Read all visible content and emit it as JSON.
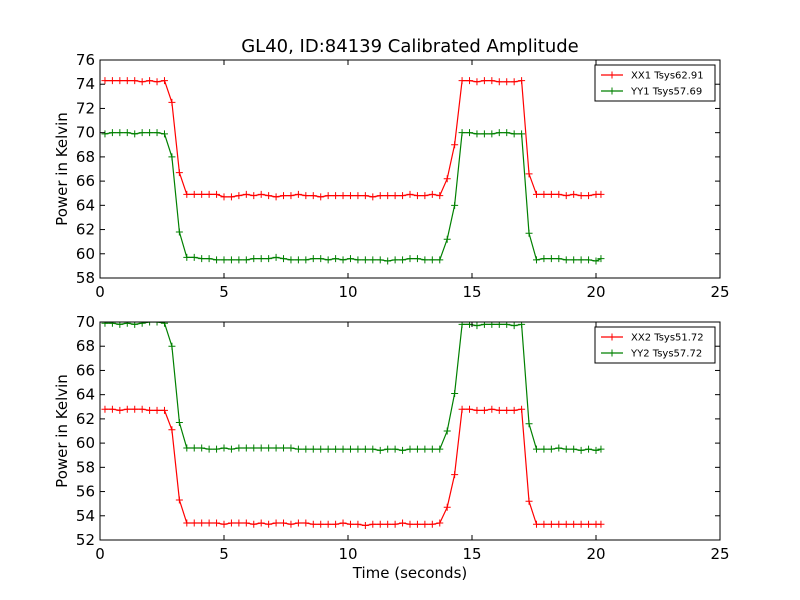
{
  "chart_data": [
    {
      "type": "line",
      "title": "GL40, ID:84139 Calibrated Amplitude",
      "xlabel": "",
      "ylabel": "Power in Kelvin",
      "xlim": [
        0,
        25
      ],
      "ylim": [
        58,
        76
      ],
      "xticks": [
        0,
        5,
        10,
        15,
        20,
        25
      ],
      "yticks": [
        58,
        60,
        62,
        64,
        66,
        68,
        70,
        72,
        74,
        76
      ],
      "legend_position": "top-right",
      "series": [
        {
          "name": "XX1 Tsys62.91",
          "color": "#ff0000",
          "x": [
            0.2,
            0.5,
            0.8,
            1.1,
            1.4,
            1.7,
            2.0,
            2.3,
            2.6,
            2.9,
            3.2,
            3.5,
            3.8,
            4.1,
            4.4,
            4.7,
            5.0,
            5.3,
            5.6,
            5.9,
            6.2,
            6.5,
            6.8,
            7.1,
            7.4,
            7.7,
            8.0,
            8.3,
            8.6,
            8.9,
            9.2,
            9.5,
            9.8,
            10.1,
            10.4,
            10.7,
            11.0,
            11.3,
            11.6,
            11.9,
            12.2,
            12.5,
            12.8,
            13.1,
            13.4,
            13.7,
            14.0,
            14.3,
            14.6,
            14.9,
            15.2,
            15.5,
            15.8,
            16.1,
            16.4,
            16.7,
            17.0,
            17.3,
            17.6,
            17.9,
            18.2,
            18.5,
            18.8,
            19.1,
            19.4,
            19.7,
            20.0,
            20.2
          ],
          "y": [
            74.3,
            74.3,
            74.3,
            74.3,
            74.3,
            74.2,
            74.3,
            74.2,
            74.3,
            72.5,
            66.7,
            64.9,
            64.9,
            64.9,
            64.9,
            64.9,
            64.7,
            64.7,
            64.8,
            64.9,
            64.8,
            64.9,
            64.8,
            64.7,
            64.8,
            64.8,
            64.9,
            64.8,
            64.8,
            64.7,
            64.8,
            64.8,
            64.8,
            64.8,
            64.8,
            64.8,
            64.7,
            64.8,
            64.8,
            64.8,
            64.8,
            64.9,
            64.8,
            64.8,
            64.9,
            64.8,
            66.2,
            69.0,
            74.3,
            74.3,
            74.2,
            74.3,
            74.3,
            74.2,
            74.2,
            74.2,
            74.3,
            66.6,
            64.9,
            64.9,
            64.9,
            64.9,
            64.8,
            64.9,
            64.8,
            64.8,
            64.9,
            64.9
          ]
        },
        {
          "name": "YY1 Tsys57.69",
          "color": "#008000",
          "x": [
            0.2,
            0.5,
            0.8,
            1.1,
            1.4,
            1.7,
            2.0,
            2.3,
            2.6,
            2.9,
            3.2,
            3.5,
            3.8,
            4.1,
            4.4,
            4.7,
            5.0,
            5.3,
            5.6,
            5.9,
            6.2,
            6.5,
            6.8,
            7.1,
            7.4,
            7.7,
            8.0,
            8.3,
            8.6,
            8.9,
            9.2,
            9.5,
            9.8,
            10.1,
            10.4,
            10.7,
            11.0,
            11.3,
            11.6,
            11.9,
            12.2,
            12.5,
            12.8,
            13.1,
            13.4,
            13.7,
            14.0,
            14.3,
            14.6,
            14.9,
            15.2,
            15.5,
            15.8,
            16.1,
            16.4,
            16.7,
            17.0,
            17.3,
            17.6,
            17.9,
            18.2,
            18.5,
            18.8,
            19.1,
            19.4,
            19.7,
            20.0,
            20.2
          ],
          "y": [
            69.9,
            70.0,
            70.0,
            70.0,
            69.9,
            70.0,
            70.0,
            70.0,
            69.9,
            68.0,
            61.8,
            59.7,
            59.7,
            59.6,
            59.6,
            59.5,
            59.5,
            59.5,
            59.5,
            59.5,
            59.6,
            59.6,
            59.6,
            59.7,
            59.6,
            59.5,
            59.5,
            59.5,
            59.6,
            59.6,
            59.5,
            59.6,
            59.5,
            59.6,
            59.5,
            59.5,
            59.5,
            59.5,
            59.4,
            59.5,
            59.5,
            59.6,
            59.6,
            59.5,
            59.5,
            59.5,
            61.2,
            64.0,
            70.0,
            70.0,
            69.9,
            69.9,
            69.9,
            70.0,
            70.0,
            69.9,
            69.9,
            61.7,
            59.5,
            59.6,
            59.6,
            59.6,
            59.5,
            59.5,
            59.5,
            59.5,
            59.4,
            59.6
          ]
        }
      ]
    },
    {
      "type": "line",
      "title": "",
      "xlabel": "Time (seconds)",
      "ylabel": "Power in Kelvin",
      "xlim": [
        0,
        25
      ],
      "ylim": [
        52,
        70
      ],
      "xticks": [
        0,
        5,
        10,
        15,
        20,
        25
      ],
      "yticks": [
        52,
        54,
        56,
        58,
        60,
        62,
        64,
        66,
        68,
        70
      ],
      "legend_position": "top-right",
      "series": [
        {
          "name": "XX2 Tsys51.72",
          "color": "#ff0000",
          "x": [
            0.2,
            0.5,
            0.8,
            1.1,
            1.4,
            1.7,
            2.0,
            2.3,
            2.6,
            2.9,
            3.2,
            3.5,
            3.8,
            4.1,
            4.4,
            4.7,
            5.0,
            5.3,
            5.6,
            5.9,
            6.2,
            6.5,
            6.8,
            7.1,
            7.4,
            7.7,
            8.0,
            8.3,
            8.6,
            8.9,
            9.2,
            9.5,
            9.8,
            10.1,
            10.4,
            10.7,
            11.0,
            11.3,
            11.6,
            11.9,
            12.2,
            12.5,
            12.8,
            13.1,
            13.4,
            13.7,
            14.0,
            14.3,
            14.6,
            14.9,
            15.2,
            15.5,
            15.8,
            16.1,
            16.4,
            16.7,
            17.0,
            17.3,
            17.6,
            17.9,
            18.2,
            18.5,
            18.8,
            19.1,
            19.4,
            19.7,
            20.0,
            20.2
          ],
          "y": [
            62.8,
            62.8,
            62.7,
            62.8,
            62.8,
            62.8,
            62.7,
            62.7,
            62.7,
            61.1,
            55.3,
            53.4,
            53.4,
            53.4,
            53.4,
            53.4,
            53.3,
            53.4,
            53.4,
            53.4,
            53.3,
            53.4,
            53.3,
            53.4,
            53.4,
            53.3,
            53.4,
            53.4,
            53.3,
            53.3,
            53.3,
            53.3,
            53.4,
            53.3,
            53.3,
            53.2,
            53.3,
            53.3,
            53.3,
            53.3,
            53.4,
            53.3,
            53.3,
            53.3,
            53.3,
            53.4,
            54.7,
            57.4,
            62.8,
            62.8,
            62.7,
            62.7,
            62.8,
            62.7,
            62.7,
            62.7,
            62.8,
            55.2,
            53.3,
            53.3,
            53.3,
            53.3,
            53.3,
            53.3,
            53.3,
            53.3,
            53.3,
            53.3
          ]
        },
        {
          "name": "YY2 Tsys57.72",
          "color": "#008000",
          "x": [
            0.2,
            0.5,
            0.8,
            1.1,
            1.4,
            1.7,
            2.0,
            2.3,
            2.6,
            2.9,
            3.2,
            3.5,
            3.8,
            4.1,
            4.4,
            4.7,
            5.0,
            5.3,
            5.6,
            5.9,
            6.2,
            6.5,
            6.8,
            7.1,
            7.4,
            7.7,
            8.0,
            8.3,
            8.6,
            8.9,
            9.2,
            9.5,
            9.8,
            10.1,
            10.4,
            10.7,
            11.0,
            11.3,
            11.6,
            11.9,
            12.2,
            12.5,
            12.8,
            13.1,
            13.4,
            13.7,
            14.0,
            14.3,
            14.6,
            14.9,
            15.2,
            15.5,
            15.8,
            16.1,
            16.4,
            16.7,
            17.0,
            17.3,
            17.6,
            17.9,
            18.2,
            18.5,
            18.8,
            19.1,
            19.4,
            19.7,
            20.0,
            20.2
          ],
          "y": [
            69.9,
            69.9,
            69.8,
            69.9,
            69.8,
            69.9,
            70.0,
            70.0,
            69.9,
            68.0,
            61.7,
            59.6,
            59.6,
            59.6,
            59.5,
            59.5,
            59.6,
            59.5,
            59.6,
            59.6,
            59.6,
            59.6,
            59.6,
            59.6,
            59.6,
            59.6,
            59.5,
            59.5,
            59.5,
            59.5,
            59.5,
            59.5,
            59.5,
            59.5,
            59.5,
            59.5,
            59.5,
            59.4,
            59.5,
            59.5,
            59.4,
            59.5,
            59.5,
            59.5,
            59.5,
            59.5,
            61.0,
            64.1,
            69.8,
            69.8,
            69.7,
            69.8,
            69.8,
            69.8,
            69.8,
            69.7,
            69.8,
            61.6,
            59.5,
            59.5,
            59.5,
            59.6,
            59.5,
            59.5,
            59.4,
            59.5,
            59.4,
            59.5
          ]
        }
      ]
    }
  ]
}
